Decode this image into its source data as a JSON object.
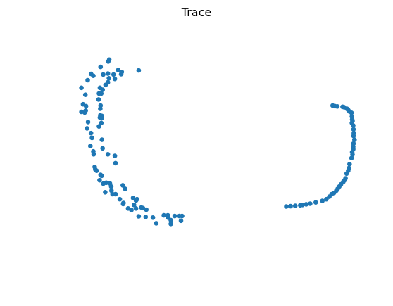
{
  "chart_data": {
    "type": "scatter",
    "title": "Trace",
    "xlabel": "",
    "ylabel": "",
    "axes_visible": false,
    "grid": false,
    "xlim": [
      0,
      100
    ],
    "ylim": [
      0,
      80
    ],
    "series": [
      {
        "color": "#1f77b4",
        "points": [
          [
            19.8,
            70.5
          ],
          [
            19.5,
            69.9
          ],
          [
            17.2,
            68.2
          ],
          [
            22.5,
            67.2
          ],
          [
            23.6,
            66.6
          ],
          [
            28.7,
            67.1
          ],
          [
            14.3,
            66.0
          ],
          [
            15.0,
            65.4
          ],
          [
            18.0,
            65.8
          ],
          [
            19.4,
            66.1
          ],
          [
            21.1,
            65.8
          ],
          [
            23.4,
            65.9
          ],
          [
            19.7,
            64.6
          ],
          [
            21.5,
            64.4
          ],
          [
            13.3,
            64.0
          ],
          [
            19.4,
            63.3
          ],
          [
            18.7,
            62.5
          ],
          [
            11.4,
            61.6
          ],
          [
            17.0,
            61.6
          ],
          [
            17.8,
            61.0
          ],
          [
            16.7,
            59.8
          ],
          [
            17.4,
            59.8
          ],
          [
            12.6,
            59.4
          ],
          [
            16.6,
            57.9
          ],
          [
            11.9,
            56.4
          ],
          [
            17.2,
            56.0
          ],
          [
            12.8,
            55.8
          ],
          [
            17.1,
            55.0
          ],
          [
            12.7,
            54.4
          ],
          [
            11.4,
            54.0
          ],
          [
            12.4,
            53.8
          ],
          [
            17.1,
            52.9
          ],
          [
            17.6,
            52.7
          ],
          [
            17.0,
            52.2
          ],
          [
            17.5,
            52.0
          ],
          [
            17.4,
            50.5
          ],
          [
            13.4,
            50.8
          ],
          [
            16.7,
            49.4
          ],
          [
            13.1,
            48.8
          ],
          [
            14.3,
            47.3
          ],
          [
            14.6,
            45.8
          ],
          [
            17.6,
            45.2
          ],
          [
            14.1,
            43.2
          ],
          [
            17.8,
            42.5
          ],
          [
            15.0,
            41.5
          ],
          [
            15.1,
            40.6
          ],
          [
            19.4,
            40.6
          ],
          [
            21.5,
            40.1
          ],
          [
            21.7,
            37.8
          ],
          [
            15.4,
            36.6
          ],
          [
            15.6,
            35.8
          ],
          [
            16.0,
            35.4
          ],
          [
            17.2,
            34.1
          ],
          [
            17.5,
            33.8
          ],
          [
            16.9,
            32.4
          ],
          [
            18.9,
            31.6
          ],
          [
            20.0,
            31.4
          ],
          [
            18.0,
            31.3
          ],
          [
            20.4,
            30.4
          ],
          [
            23.9,
            30.8
          ],
          [
            24.6,
            29.7
          ],
          [
            20.5,
            29.1
          ],
          [
            18.6,
            28.6
          ],
          [
            20.8,
            28.0
          ],
          [
            21.7,
            28.0
          ],
          [
            27.0,
            26.8
          ],
          [
            28.2,
            26.4
          ],
          [
            27.9,
            26.0
          ],
          [
            23.0,
            26.4
          ],
          [
            24.1,
            25.2
          ],
          [
            24.0,
            24.9
          ],
          [
            27.3,
            24.6
          ],
          [
            29.5,
            23.8
          ],
          [
            25.5,
            23.5
          ],
          [
            27.9,
            23.5
          ],
          [
            30.0,
            23.6
          ],
          [
            31.0,
            23.1
          ],
          [
            26.5,
            23.0
          ],
          [
            36.3,
            21.3
          ],
          [
            37.5,
            21.3
          ],
          [
            39.6,
            21.1
          ],
          [
            41.0,
            21.1
          ],
          [
            41.8,
            21.1
          ],
          [
            28.7,
            21.0
          ],
          [
            30.8,
            20.8
          ],
          [
            33.0,
            20.6
          ],
          [
            37.6,
            20.6
          ],
          [
            38.4,
            19.8
          ],
          [
            41.5,
            19.6
          ],
          [
            34.0,
            18.8
          ],
          [
            38.4,
            18.6
          ],
          [
            87.3,
            56.0
          ],
          [
            88.0,
            55.8
          ],
          [
            88.7,
            55.7
          ],
          [
            90.3,
            55.6
          ],
          [
            90.7,
            55.5
          ],
          [
            91.6,
            55.0
          ],
          [
            92.0,
            54.6
          ],
          [
            92.4,
            54.1
          ],
          [
            93.0,
            53.7
          ],
          [
            93.1,
            52.5
          ],
          [
            93.2,
            51.6
          ],
          [
            93.3,
            51.1
          ],
          [
            93.1,
            50.5
          ],
          [
            93.5,
            49.7
          ],
          [
            93.6,
            48.5
          ],
          [
            93.7,
            47.3
          ],
          [
            93.6,
            46.4
          ],
          [
            93.9,
            45.2
          ],
          [
            93.6,
            44.0
          ],
          [
            93.5,
            43.0
          ],
          [
            93.5,
            42.2
          ],
          [
            93.2,
            41.3
          ],
          [
            93.3,
            40.5
          ],
          [
            93.0,
            39.4
          ],
          [
            92.4,
            37.5
          ],
          [
            92.2,
            36.2
          ],
          [
            92.0,
            35.4
          ],
          [
            91.5,
            34.5
          ],
          [
            91.2,
            33.0
          ],
          [
            90.9,
            32.4
          ],
          [
            90.5,
            31.9
          ],
          [
            89.8,
            31.1
          ],
          [
            89.3,
            30.4
          ],
          [
            88.8,
            29.7
          ],
          [
            88.4,
            29.1
          ],
          [
            87.7,
            28.4
          ],
          [
            87.0,
            28.0
          ],
          [
            86.3,
            27.2
          ],
          [
            85.4,
            26.4
          ],
          [
            84.2,
            25.9
          ],
          [
            82.2,
            25.4
          ],
          [
            80.5,
            25.0
          ],
          [
            79.3,
            24.8
          ],
          [
            78.2,
            24.6
          ],
          [
            77.5,
            24.5
          ],
          [
            76.0,
            24.3
          ],
          [
            74.6,
            24.2
          ],
          [
            73.3,
            24.1
          ]
        ]
      }
    ]
  }
}
